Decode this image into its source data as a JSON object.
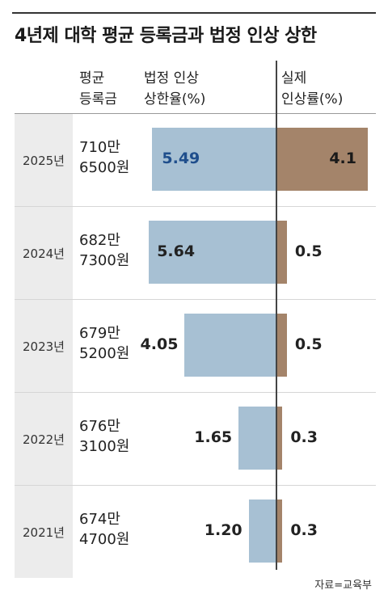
{
  "title": "4년제 대학 평균 등록금과 법정 인상 상한",
  "headers": {
    "tuition": [
      "평균",
      "등록금"
    ],
    "cap": [
      "법정 인상",
      "상한율(%)"
    ],
    "actual": [
      "실제",
      "인상률(%)"
    ]
  },
  "source": "자료=교육부",
  "colors": {
    "cap_bar": "#a7c0d3",
    "actual_bar": "#a4846a",
    "highlight_text": "#1f4e8c",
    "text": "#222222"
  },
  "chart_data": {
    "type": "bar",
    "title": "4년제 대학 평균 등록금과 법정 인상 상한",
    "categories": [
      "2025년",
      "2024년",
      "2023년",
      "2022년",
      "2021년"
    ],
    "tuition_labels": [
      [
        "710만",
        "6500원"
      ],
      [
        "682만",
        "7300원"
      ],
      [
        "679만",
        "5200원"
      ],
      [
        "676만",
        "3100원"
      ],
      [
        "674만",
        "4700원"
      ]
    ],
    "series": [
      {
        "name": "법정 인상 상한율(%)",
        "values": [
          5.49,
          5.64,
          4.05,
          1.65,
          1.2
        ],
        "labels": [
          "5.49",
          "5.64",
          "4.05",
          "1.65",
          "1.20"
        ]
      },
      {
        "name": "실제 인상률(%)",
        "values": [
          4.1,
          0.5,
          0.5,
          0.3,
          0.3
        ],
        "labels": [
          "4.1",
          "0.5",
          "0.5",
          "0.3",
          "0.3"
        ]
      }
    ],
    "orientation": "diverging-horizontal"
  }
}
